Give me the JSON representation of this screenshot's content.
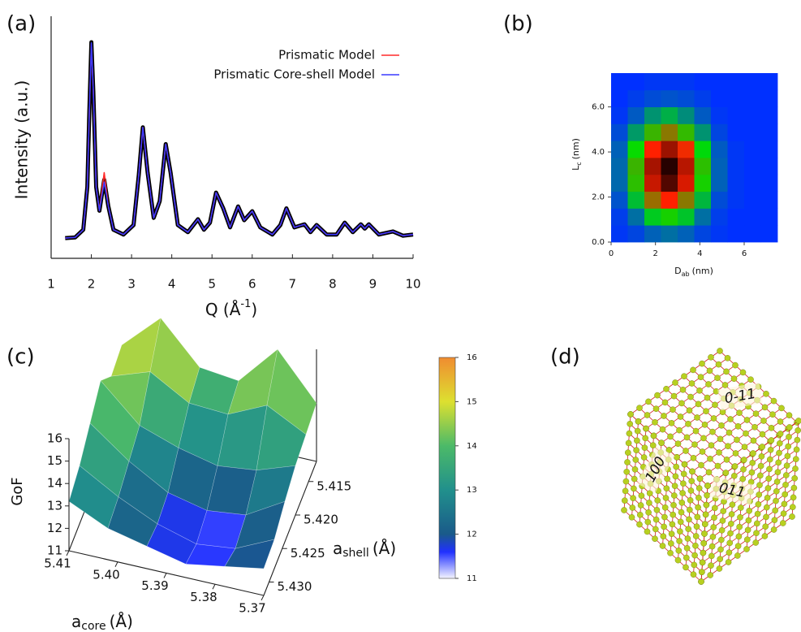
{
  "chart_data": [
    {
      "type": "line",
      "panel": "(a)",
      "ylabel": "Intensity (a.u.)",
      "xlabel": "Q (Å",
      "xlabel_sup": "-1",
      "xlabel_end": ")",
      "xlim": [
        1,
        10
      ],
      "xticks": [
        1,
        2,
        3,
        4,
        5,
        6,
        7,
        8,
        9,
        10
      ],
      "ylim": [
        0,
        1
      ],
      "legend": "upper right",
      "x": [
        1.35,
        1.6,
        1.8,
        1.9,
        1.95,
        2.0,
        2.05,
        2.12,
        2.2,
        2.32,
        2.42,
        2.55,
        2.8,
        3.05,
        3.18,
        3.28,
        3.4,
        3.55,
        3.7,
        3.85,
        3.97,
        4.15,
        4.4,
        4.65,
        4.8,
        4.95,
        5.1,
        5.28,
        5.45,
        5.65,
        5.8,
        6.0,
        6.2,
        6.5,
        6.7,
        6.85,
        7.05,
        7.3,
        7.45,
        7.6,
        7.85,
        8.1,
        8.3,
        8.5,
        8.7,
        8.8,
        8.9,
        9.15,
        9.5,
        9.75,
        10.0
      ],
      "observed": {
        "color": "#000000",
        "values": [
          0.085,
          0.088,
          0.12,
          0.3,
          0.62,
          0.908,
          0.7,
          0.3,
          0.2,
          0.33,
          0.22,
          0.12,
          0.1,
          0.14,
          0.35,
          0.55,
          0.36,
          0.17,
          0.24,
          0.48,
          0.36,
          0.14,
          0.11,
          0.164,
          0.12,
          0.15,
          0.276,
          0.21,
          0.13,
          0.218,
          0.16,
          0.198,
          0.13,
          0.1,
          0.14,
          0.21,
          0.13,
          0.143,
          0.11,
          0.14,
          0.1,
          0.1,
          0.15,
          0.11,
          0.143,
          0.125,
          0.143,
          0.1,
          0.113,
          0.095,
          0.1
        ]
      },
      "series": [
        {
          "name": "Prismatic Model",
          "color": "#ff2a2a",
          "values": [
            0.085,
            0.088,
            0.12,
            0.3,
            0.62,
            0.9,
            0.7,
            0.3,
            0.2,
            0.36,
            0.22,
            0.12,
            0.1,
            0.14,
            0.35,
            0.55,
            0.36,
            0.17,
            0.24,
            0.48,
            0.36,
            0.14,
            0.11,
            0.164,
            0.12,
            0.15,
            0.276,
            0.21,
            0.13,
            0.218,
            0.16,
            0.198,
            0.13,
            0.1,
            0.14,
            0.21,
            0.13,
            0.143,
            0.11,
            0.14,
            0.1,
            0.1,
            0.15,
            0.11,
            0.143,
            0.125,
            0.143,
            0.1,
            0.113,
            0.095,
            0.1
          ]
        },
        {
          "name": "Prismatic Core-shell Model",
          "color": "#3a3aff",
          "values": [
            0.085,
            0.088,
            0.12,
            0.3,
            0.62,
            0.905,
            0.7,
            0.3,
            0.2,
            0.32,
            0.22,
            0.12,
            0.1,
            0.14,
            0.35,
            0.55,
            0.36,
            0.17,
            0.24,
            0.48,
            0.36,
            0.14,
            0.11,
            0.164,
            0.12,
            0.15,
            0.276,
            0.21,
            0.13,
            0.218,
            0.16,
            0.198,
            0.13,
            0.1,
            0.14,
            0.21,
            0.13,
            0.143,
            0.11,
            0.14,
            0.1,
            0.1,
            0.15,
            0.11,
            0.143,
            0.125,
            0.143,
            0.1,
            0.113,
            0.095,
            0.1
          ]
        }
      ]
    },
    {
      "type": "heatmap",
      "panel": "(b)",
      "xlabel": "D",
      "xlabel_sub": "ab",
      "xlabel_end": "(nm)",
      "ylabel": "L",
      "ylabel_sub": "c",
      "ylabel_end": "(nm)",
      "xlim": [
        0,
        7.5
      ],
      "ylim": [
        0,
        7.5
      ],
      "xticks": [
        0,
        2,
        4,
        6
      ],
      "yticks": [
        {
          "value": 0,
          "label": "0.0"
        },
        {
          "value": 2,
          "label": "2.0"
        },
        {
          "value": 4,
          "label": "4.0"
        },
        {
          "value": 6,
          "label": "6.0"
        }
      ],
      "xbins": [
        0,
        0.75,
        1.5,
        2.25,
        3,
        3.75,
        4.5,
        5.25,
        6,
        6.75,
        7.5
      ],
      "ybins": [
        0,
        0.75,
        1.5,
        2.25,
        3,
        3.75,
        4.5,
        5.25,
        6,
        6.75,
        7.5
      ],
      "z": [
        [
          1,
          3,
          7,
          9,
          7,
          3,
          1,
          0,
          0,
          0
        ],
        [
          2,
          9,
          22,
          28,
          21,
          9,
          2,
          0,
          0,
          0
        ],
        [
          5,
          20,
          46,
          60,
          44,
          19,
          4,
          1,
          0,
          0
        ],
        [
          8,
          31,
          70,
          91,
          67,
          28,
          7,
          1,
          0,
          0
        ],
        [
          8,
          33,
          76,
          99,
          73,
          31,
          7,
          1,
          0,
          0
        ],
        [
          7,
          26,
          60,
          78,
          58,
          24,
          6,
          1,
          0,
          0
        ],
        [
          4,
          15,
          33,
          44,
          32,
          14,
          3,
          0,
          0,
          0
        ],
        [
          1,
          6,
          14,
          18,
          13,
          6,
          1,
          0,
          0,
          0
        ],
        [
          0,
          2,
          4,
          5,
          4,
          2,
          0,
          0,
          0,
          0
        ],
        [
          0,
          0,
          1,
          1,
          1,
          0,
          0,
          0,
          0,
          0
        ]
      ],
      "colorscale": [
        [
          0,
          "#0030ff"
        ],
        [
          25,
          "#00e000"
        ],
        [
          60,
          "#ff2000"
        ],
        [
          100,
          "#200000"
        ]
      ]
    },
    {
      "type": "surface",
      "panel": "(c)",
      "xlabel": "a",
      "xlabel_sub": "core",
      "xlabel_end": "(Å)",
      "ylabel": "a",
      "ylabel_sub": "shell",
      "ylabel_end": "(Å)",
      "zlabel": "GoF",
      "xlim": [
        5.41,
        5.37
      ],
      "ylim": [
        5.412,
        5.432
      ],
      "zlim": [
        11,
        16
      ],
      "xticks": [
        5.41,
        {
          "value": 5.4,
          "label": "5.40"
        },
        5.39,
        5.38,
        5.37
      ],
      "yticks": [
        5.415,
        {
          "value": 5.42,
          "label": "5.420"
        },
        5.425,
        {
          "value": 5.43,
          "label": "5.430"
        }
      ],
      "zticks": [
        11,
        12,
        13,
        14,
        15,
        16
      ],
      "x": [
        5.41,
        5.402,
        5.394,
        5.386,
        5.378,
        5.37
      ],
      "y": [
        5.412,
        5.416,
        5.42,
        5.424,
        5.428,
        5.432
      ],
      "z": [
        [
          14.2,
          15.8,
          14.0,
          13.8,
          15.6,
          13.6
        ],
        [
          14.0,
          14.6,
          13.6,
          13.5,
          14.3,
          13.4
        ],
        [
          15.0,
          13.4,
          12.8,
          12.4,
          12.6,
          13.2
        ],
        [
          14.3,
          13.0,
          12.0,
          11.6,
          11.8,
          12.8
        ],
        [
          13.6,
          12.6,
          11.8,
          11.3,
          11.5,
          12.3
        ],
        [
          13.2,
          12.4,
          12.0,
          11.6,
          11.9,
          12.2
        ]
      ],
      "colorscale": [
        [
          11,
          "#f4f4ff"
        ],
        [
          11.6,
          "#2030ff"
        ],
        [
          12,
          "#1a5a8a"
        ],
        [
          13,
          "#21908c"
        ],
        [
          14,
          "#4cba68"
        ],
        [
          15,
          "#dde030"
        ],
        [
          16,
          "#f08c30"
        ]
      ],
      "colorbar_ticks": [
        11,
        12,
        13,
        14,
        15,
        16
      ]
    }
  ],
  "panel_d": {
    "label": "(d)",
    "facets": [
      "0-11",
      "100",
      "011"
    ]
  }
}
